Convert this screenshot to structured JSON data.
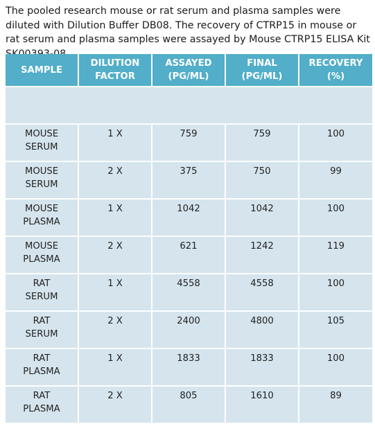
{
  "intro": {
    "text": "The pooled research mouse or rat serum and plasma samples were diluted with Dilution Buffer DB08. The recovery of CTRP15 in mouse or rat serum and plasma samples were assayed by Mouse CTRP15 ELISA Kit SK00393-08"
  },
  "table": {
    "headers": {
      "sample": "SAMPLE",
      "dilution_1": "DILUTION",
      "dilution_2": "FACTOR",
      "assayed_1": "ASSAYED",
      "assayed_2": "(PG/ML)",
      "final_1": "FINAL",
      "final_2": "(PG/ML)",
      "recovery_1": "RECOVERY",
      "recovery_2": "(%)"
    },
    "rows": [
      {
        "sample_1": "MOUSE",
        "sample_2": "SERUM",
        "dilution": "1 X",
        "assayed": "759",
        "final": "759",
        "recovery": "100"
      },
      {
        "sample_1": "MOUSE",
        "sample_2": "SERUM",
        "dilution": "2 X",
        "assayed": "375",
        "final": "750",
        "recovery": "99"
      },
      {
        "sample_1": "MOUSE",
        "sample_2": "PLASMA",
        "dilution": "1 X",
        "assayed": "1042",
        "final": "1042",
        "recovery": "100"
      },
      {
        "sample_1": "MOUSE",
        "sample_2": "PLASMA",
        "dilution": "2 X",
        "assayed": "621",
        "final": "1242",
        "recovery": "119"
      },
      {
        "sample_1": "RAT",
        "sample_2": "SERUM",
        "dilution": "1 X",
        "assayed": "4558",
        "final": "4558",
        "recovery": "100"
      },
      {
        "sample_1": "RAT",
        "sample_2": "SERUM",
        "dilution": "2 X",
        "assayed": "2400",
        "final": "4800",
        "recovery": "105"
      },
      {
        "sample_1": "RAT",
        "sample_2": "PLASMA",
        "dilution": "1 X",
        "assayed": "1833",
        "final": "1833",
        "recovery": "100"
      },
      {
        "sample_1": "RAT",
        "sample_2": "PLASMA",
        "dilution": "2 X",
        "assayed": "805",
        "final": "1610",
        "recovery": "89"
      }
    ]
  },
  "colors": {
    "header_bg": "#52aec9",
    "cell_bg": "#d5e4ed"
  }
}
